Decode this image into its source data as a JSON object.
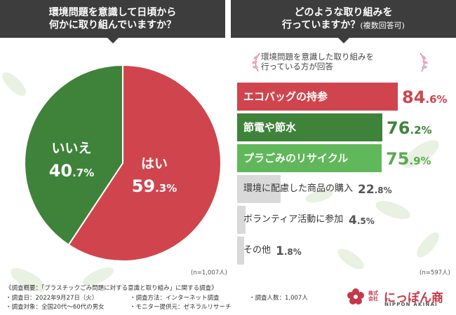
{
  "left_panel": {
    "question_line1": "環境問題を意識して日頃から",
    "question_line2": "何かに取り組んでいますか？",
    "n_note": "(n=1,007人)"
  },
  "right_panel": {
    "question_line1": "どのような取り組みを",
    "question_line2_main": "行っていますか？",
    "question_line2_sub": "(複数回答可)",
    "note_line1": "環境問題を意識した取り組みを",
    "note_line2": "行っている方が回答",
    "n_note": "(n=597人)"
  },
  "chart_data": [
    {
      "type": "pie",
      "title": "環境問題を意識して日頃から何かに取り組んでいますか？",
      "unit": "%",
      "slices": [
        {
          "label": "はい",
          "value": 59.3,
          "int_part": "59",
          "dec_part": ".3%",
          "color": "#d0454d"
        },
        {
          "label": "いいえ",
          "value": 40.7,
          "int_part": "40",
          "dec_part": ".7%",
          "color": "#3f833b"
        }
      ]
    },
    {
      "type": "bar",
      "orientation": "horizontal",
      "title": "どのような取り組みを行っていますか？(複数回答可)",
      "unit": "%",
      "xlim": [
        0,
        100
      ],
      "categories": [
        "エコバッグの持参",
        "節電や節水",
        "プラごみのリサイクル",
        "環境に配慮した商品の購入",
        "ボランティア活動に参加",
        "その他"
      ],
      "values": [
        84.6,
        76.2,
        75.9,
        22.8,
        4.5,
        1.8
      ],
      "int_parts": [
        "84",
        "76",
        "75",
        "22",
        "4",
        "1"
      ],
      "dec_parts": [
        ".6%",
        ".2%",
        ".9%",
        ".8%",
        ".5%",
        ".8%"
      ],
      "colors": [
        "#d0454d",
        "#3f833b",
        "#60b85a",
        "#d9d9d9",
        "#d9d9d9",
        "#d9d9d9"
      ],
      "value_colors": [
        "#d0454d",
        "#3f833b",
        "#5aab52",
        "#555555",
        "#555555",
        "#555555"
      ]
    }
  ],
  "footer": {
    "title": "《調査概要：「プラスチックごみ問題に対する意識と取り組み」に関する調査》",
    "date": "・調査日：2022年9月27日（火）",
    "target": "・調査対象：全国20代～60代の男女",
    "method": "・調査方法：インターネット調査",
    "provider": "・モニター提供元：ゼネラルリサーチ",
    "count": "・調査人数：1,007人"
  },
  "logo": {
    "small_line1": "株式",
    "small_line2": "会社",
    "main": "にっぽん商",
    "sub": "NIPPON AKINAI",
    "color": "#c6374a"
  }
}
